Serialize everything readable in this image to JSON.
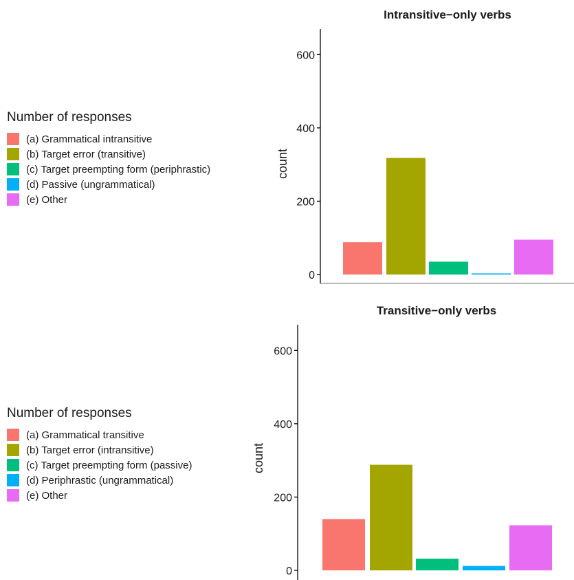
{
  "chart_data": [
    {
      "type": "bar",
      "title": "Intransitive−only verbs",
      "xlabel": "",
      "ylabel": "count",
      "ylim": [
        0,
        670
      ],
      "yticks": [
        0,
        200,
        400,
        600
      ],
      "legend_title": "Number of responses",
      "legend_position": "left",
      "categories": [
        "(a) Grammatical intransitive",
        "(b) Target error (transitive)",
        "(c) Target preempting form (periphrastic)",
        "(d) Passive (ungrammatical)",
        "(e) Other"
      ],
      "values": [
        88,
        318,
        35,
        3,
        95
      ],
      "colors": [
        "#F8766D",
        "#A3A500",
        "#00BF7D",
        "#00B0F6",
        "#E76BF3"
      ],
      "grid": false
    },
    {
      "type": "bar",
      "title": "Transitive−only verbs",
      "xlabel": "",
      "ylabel": "count",
      "ylim": [
        0,
        670
      ],
      "yticks": [
        0,
        200,
        400,
        600
      ],
      "legend_title": "Number of responses",
      "legend_position": "left",
      "categories": [
        "(a) Grammatical transitive",
        "(b) Target error (intransitive)",
        "(c) Target preempting form (passive)",
        "(d) Periphrastic (ungrammatical)",
        "(e) Other"
      ],
      "values": [
        140,
        288,
        32,
        12,
        123
      ],
      "colors": [
        "#F8766D",
        "#A3A500",
        "#00BF7D",
        "#00B0F6",
        "#E76BF3"
      ],
      "grid": false
    }
  ]
}
